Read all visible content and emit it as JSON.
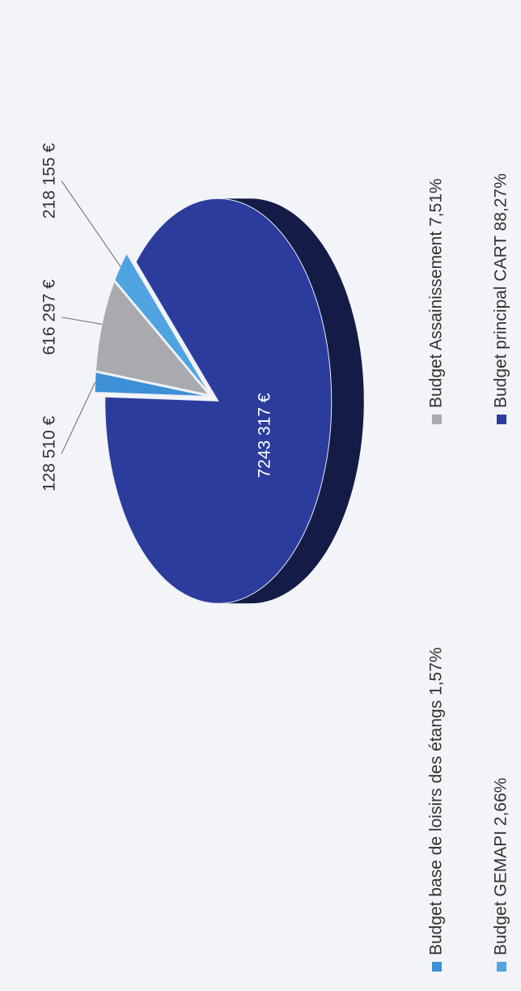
{
  "chart_data": {
    "type": "pie",
    "categories": [
      "Budget base de loisirs des étangs 1,57%",
      "Budget Assainissement 7,51%",
      "Budget GEMAPI 2,66%",
      "Budget principal CART 88,27%"
    ],
    "values": [
      128510,
      616297,
      218155,
      7243317
    ],
    "value_labels": [
      "128 510 €",
      "616 297 €",
      "218 155 €",
      "7243 317 €"
    ],
    "colors": [
      "#3d8fd6",
      "#a9aaae",
      "#4fa3e0",
      "#2c3c9c"
    ],
    "legend": "bottom"
  }
}
